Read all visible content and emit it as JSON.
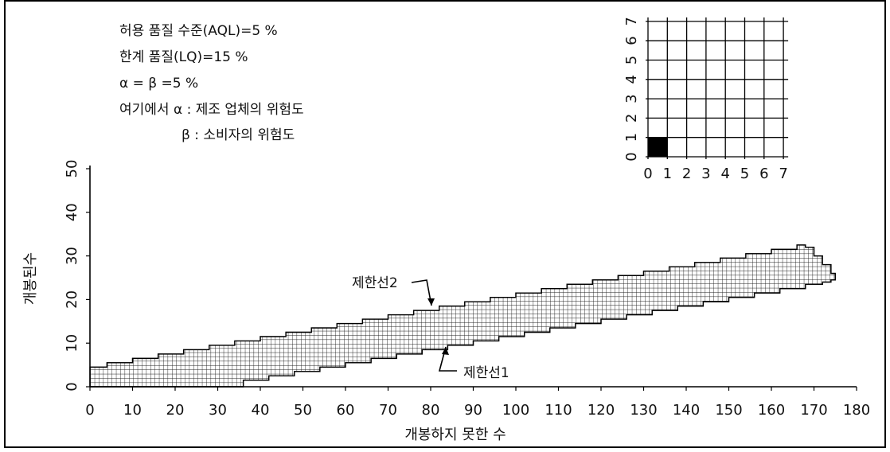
{
  "chart_data": {
    "type": "area",
    "title": "",
    "xlabel": "개봉하지 못한 수",
    "ylabel": "개봉된수",
    "xlim": [
      0,
      180
    ],
    "ylim": [
      0,
      50
    ],
    "x_ticks": [
      "0",
      "10",
      "20",
      "30",
      "40",
      "50",
      "60",
      "70",
      "80",
      "90",
      "100",
      "110",
      "120",
      "130",
      "140",
      "150",
      "160",
      "170",
      "180"
    ],
    "y_ticks": [
      "0",
      "10",
      "20",
      "30",
      "40",
      "50"
    ],
    "notes": [
      "허용 품질 수준(AQL)=5 %",
      "한계 품질(LQ)=15 %",
      "α = β =5 %",
      "여기에서 α : 제조 업체의 위험도",
      "β : 소비자의 위험도"
    ],
    "series": [
      {
        "name": "제한선2",
        "x": [
          0,
          4,
          10,
          16,
          22,
          28,
          34,
          40,
          46,
          52,
          58,
          64,
          70,
          76,
          82,
          88,
          94,
          100,
          106,
          112,
          118,
          124,
          130,
          136,
          142,
          148,
          154,
          160,
          166,
          168,
          170,
          172,
          174,
          175
        ],
        "y": [
          4.5,
          5.5,
          6.5,
          7.5,
          8.5,
          9.5,
          10.5,
          11.5,
          12.5,
          13.5,
          14.5,
          15.5,
          16.5,
          17.5,
          18.5,
          19.5,
          20.5,
          21.5,
          22.5,
          23.5,
          24.5,
          25.5,
          26.5,
          27.5,
          28.5,
          29.5,
          30.5,
          31.5,
          32.5,
          32.0,
          30.0,
          28.0,
          26.0,
          25.0
        ]
      },
      {
        "name": "제한선1",
        "x": [
          0,
          30,
          36,
          42,
          48,
          54,
          60,
          66,
          72,
          78,
          84,
          90,
          96,
          102,
          108,
          114,
          120,
          126,
          132,
          138,
          144,
          150,
          156,
          162,
          168,
          172,
          174,
          175
        ],
        "y": [
          0,
          0,
          1.5,
          2.5,
          3.5,
          4.5,
          5.5,
          6.5,
          7.5,
          8.5,
          9.5,
          10.5,
          11.5,
          12.5,
          13.5,
          14.5,
          15.5,
          16.5,
          17.5,
          18.5,
          19.5,
          20.5,
          21.5,
          22.5,
          23.5,
          24.0,
          24.5,
          25.0
        ]
      }
    ],
    "annotations": [
      "제한선2",
      "제한선1"
    ],
    "inset": {
      "type": "grid",
      "x_ticks": [
        "0",
        "1",
        "2",
        "3",
        "4",
        "5",
        "6",
        "7"
      ],
      "y_ticks": [
        "0",
        "1",
        "2",
        "3",
        "4",
        "5",
        "6",
        "7"
      ],
      "filled_cell": [
        0,
        0
      ]
    },
    "grid": false
  }
}
